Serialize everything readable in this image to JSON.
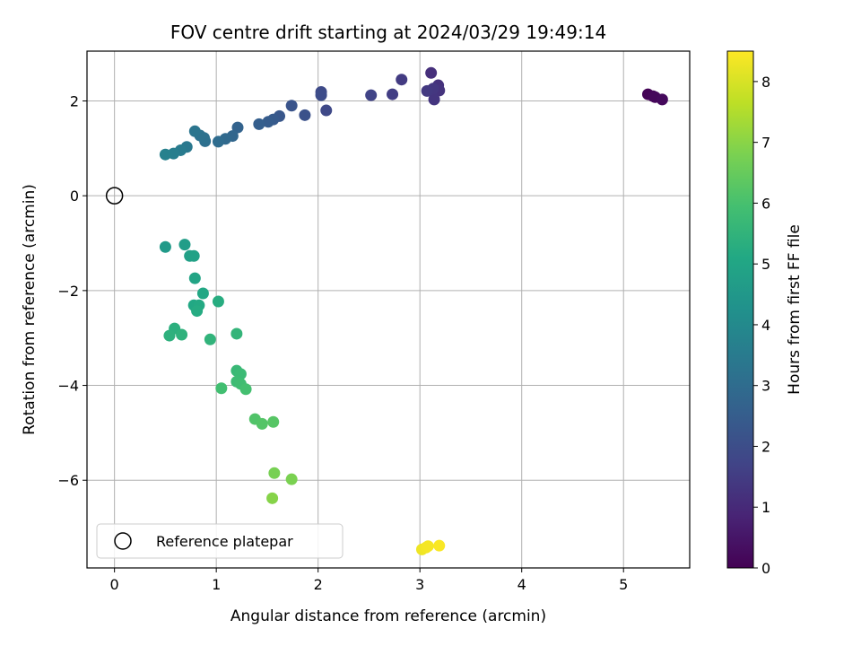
{
  "chart_data": {
    "type": "scatter",
    "title": "FOV centre drift starting at 2024/03/29 19:49:14",
    "xlabel": "Angular distance from reference (arcmin)",
    "ylabel": "Rotation from reference (arcmin)",
    "xlim": [
      -0.27,
      5.65
    ],
    "ylim": [
      -7.85,
      3.05
    ],
    "xticks": [
      0,
      1,
      2,
      3,
      4,
      5
    ],
    "yticks": [
      -6,
      -4,
      -2,
      0,
      2
    ],
    "grid": true,
    "legend": {
      "position": "lower-left",
      "entries": [
        "Reference platepar"
      ]
    },
    "reference_point": {
      "x": 0,
      "y": 0,
      "label": "Reference platepar"
    },
    "colorbar": {
      "label": "Hours from first FF file",
      "colormap": "viridis",
      "range": [
        0,
        8.5
      ],
      "ticks": [
        0,
        1,
        2,
        3,
        4,
        5,
        6,
        7,
        8
      ]
    },
    "points": [
      {
        "x": 5.24,
        "y": 2.14,
        "c": 0.05
      },
      {
        "x": 5.29,
        "y": 2.1,
        "c": 0.1
      },
      {
        "x": 5.31,
        "y": 2.08,
        "c": 0.15
      },
      {
        "x": 5.38,
        "y": 2.03,
        "c": 0.2
      },
      {
        "x": 3.11,
        "y": 2.59,
        "c": 1.15
      },
      {
        "x": 3.18,
        "y": 2.33,
        "c": 1.2
      },
      {
        "x": 3.19,
        "y": 2.22,
        "c": 1.25
      },
      {
        "x": 3.14,
        "y": 2.03,
        "c": 1.3
      },
      {
        "x": 3.13,
        "y": 2.26,
        "c": 1.35
      },
      {
        "x": 3.07,
        "y": 2.21,
        "c": 1.4
      },
      {
        "x": 2.82,
        "y": 2.45,
        "c": 1.45
      },
      {
        "x": 2.73,
        "y": 2.14,
        "c": 1.55
      },
      {
        "x": 2.52,
        "y": 2.12,
        "c": 1.7
      },
      {
        "x": 2.08,
        "y": 1.8,
        "c": 1.85
      },
      {
        "x": 2.03,
        "y": 2.19,
        "c": 1.9
      },
      {
        "x": 2.03,
        "y": 2.12,
        "c": 1.95
      },
      {
        "x": 1.87,
        "y": 1.7,
        "c": 2.1
      },
      {
        "x": 1.74,
        "y": 1.9,
        "c": 2.2
      },
      {
        "x": 1.62,
        "y": 1.68,
        "c": 2.3
      },
      {
        "x": 1.56,
        "y": 1.61,
        "c": 2.4
      },
      {
        "x": 1.51,
        "y": 1.56,
        "c": 2.45
      },
      {
        "x": 1.42,
        "y": 1.51,
        "c": 2.55
      },
      {
        "x": 1.21,
        "y": 1.44,
        "c": 2.7
      },
      {
        "x": 1.16,
        "y": 1.26,
        "c": 2.8
      },
      {
        "x": 1.09,
        "y": 1.2,
        "c": 2.9
      },
      {
        "x": 1.02,
        "y": 1.14,
        "c": 3.0
      },
      {
        "x": 0.89,
        "y": 1.15,
        "c": 3.1
      },
      {
        "x": 0.88,
        "y": 1.22,
        "c": 3.15
      },
      {
        "x": 0.84,
        "y": 1.27,
        "c": 3.2
      },
      {
        "x": 0.79,
        "y": 1.36,
        "c": 3.3
      },
      {
        "x": 0.71,
        "y": 1.03,
        "c": 3.4
      },
      {
        "x": 0.65,
        "y": 0.96,
        "c": 3.5
      },
      {
        "x": 0.58,
        "y": 0.89,
        "c": 3.6
      },
      {
        "x": 0.5,
        "y": 0.87,
        "c": 3.7
      },
      {
        "x": 0.5,
        "y": -1.08,
        "c": 4.6
      },
      {
        "x": 0.69,
        "y": -1.03,
        "c": 4.7
      },
      {
        "x": 0.74,
        "y": -1.27,
        "c": 4.8
      },
      {
        "x": 0.78,
        "y": -1.27,
        "c": 4.85
      },
      {
        "x": 0.79,
        "y": -1.74,
        "c": 4.95
      },
      {
        "x": 0.87,
        "y": -2.06,
        "c": 5.05
      },
      {
        "x": 0.78,
        "y": -2.31,
        "c": 5.1
      },
      {
        "x": 0.83,
        "y": -2.31,
        "c": 5.15
      },
      {
        "x": 0.81,
        "y": -2.43,
        "c": 5.2
      },
      {
        "x": 1.02,
        "y": -2.23,
        "c": 5.25
      },
      {
        "x": 0.59,
        "y": -2.8,
        "c": 5.35
      },
      {
        "x": 0.54,
        "y": -2.95,
        "c": 5.4
      },
      {
        "x": 0.66,
        "y": -2.93,
        "c": 5.45
      },
      {
        "x": 0.94,
        "y": -3.03,
        "c": 5.5
      },
      {
        "x": 1.2,
        "y": -2.91,
        "c": 5.55
      },
      {
        "x": 1.2,
        "y": -3.69,
        "c": 5.7
      },
      {
        "x": 1.24,
        "y": -3.76,
        "c": 5.75
      },
      {
        "x": 1.2,
        "y": -3.92,
        "c": 5.8
      },
      {
        "x": 1.24,
        "y": -3.97,
        "c": 5.85
      },
      {
        "x": 1.05,
        "y": -4.06,
        "c": 5.9
      },
      {
        "x": 1.29,
        "y": -4.08,
        "c": 5.95
      },
      {
        "x": 1.38,
        "y": -4.71,
        "c": 6.15
      },
      {
        "x": 1.45,
        "y": -4.81,
        "c": 6.2
      },
      {
        "x": 1.56,
        "y": -4.77,
        "c": 6.25
      },
      {
        "x": 1.57,
        "y": -5.85,
        "c": 6.75
      },
      {
        "x": 1.74,
        "y": -5.98,
        "c": 6.8
      },
      {
        "x": 1.55,
        "y": -6.38,
        "c": 6.95
      },
      {
        "x": 3.02,
        "y": -7.46,
        "c": 8.3
      },
      {
        "x": 3.06,
        "y": -7.42,
        "c": 8.35
      },
      {
        "x": 3.08,
        "y": -7.39,
        "c": 8.4
      },
      {
        "x": 3.19,
        "y": -7.38,
        "c": 8.45
      }
    ]
  }
}
